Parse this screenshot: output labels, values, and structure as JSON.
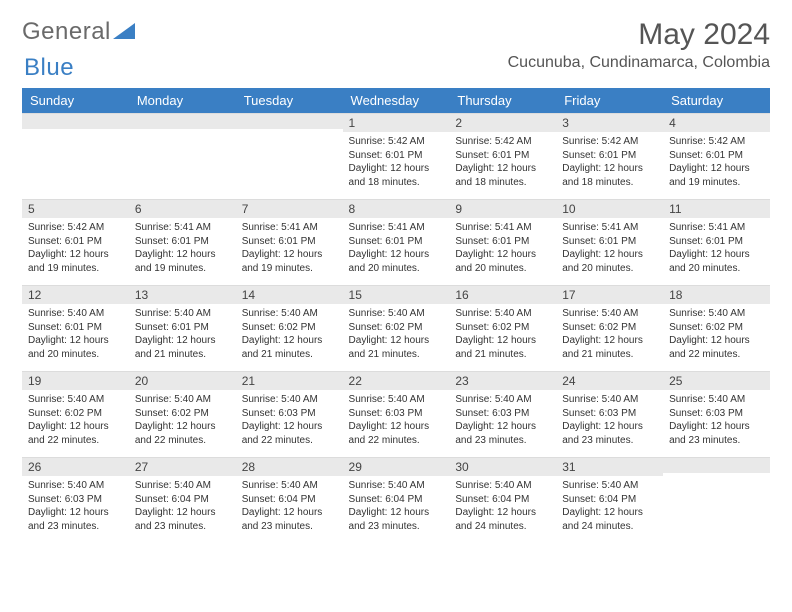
{
  "brand": {
    "part1": "General",
    "part2": "Blue"
  },
  "title": "May 2024",
  "location": "Cucunuba, Cundinamarca, Colombia",
  "colors": {
    "accent": "#3a7fc4",
    "header_text": "#ffffff",
    "daynum_bg": "#e9e9e9",
    "text": "#333333",
    "muted": "#555555"
  },
  "typography": {
    "title_size_pt": 22,
    "location_size_pt": 12,
    "dayhead_size_pt": 10,
    "body_size_pt": 7.5
  },
  "dayHeaders": [
    "Sunday",
    "Monday",
    "Tuesday",
    "Wednesday",
    "Thursday",
    "Friday",
    "Saturday"
  ],
  "weeks": [
    [
      {
        "n": "",
        "lines": [
          "",
          "",
          "",
          ""
        ]
      },
      {
        "n": "",
        "lines": [
          "",
          "",
          "",
          ""
        ]
      },
      {
        "n": "",
        "lines": [
          "",
          "",
          "",
          ""
        ]
      },
      {
        "n": "1",
        "lines": [
          "Sunrise: 5:42 AM",
          "Sunset: 6:01 PM",
          "Daylight: 12 hours",
          "and 18 minutes."
        ]
      },
      {
        "n": "2",
        "lines": [
          "Sunrise: 5:42 AM",
          "Sunset: 6:01 PM",
          "Daylight: 12 hours",
          "and 18 minutes."
        ]
      },
      {
        "n": "3",
        "lines": [
          "Sunrise: 5:42 AM",
          "Sunset: 6:01 PM",
          "Daylight: 12 hours",
          "and 18 minutes."
        ]
      },
      {
        "n": "4",
        "lines": [
          "Sunrise: 5:42 AM",
          "Sunset: 6:01 PM",
          "Daylight: 12 hours",
          "and 19 minutes."
        ]
      }
    ],
    [
      {
        "n": "5",
        "lines": [
          "Sunrise: 5:42 AM",
          "Sunset: 6:01 PM",
          "Daylight: 12 hours",
          "and 19 minutes."
        ]
      },
      {
        "n": "6",
        "lines": [
          "Sunrise: 5:41 AM",
          "Sunset: 6:01 PM",
          "Daylight: 12 hours",
          "and 19 minutes."
        ]
      },
      {
        "n": "7",
        "lines": [
          "Sunrise: 5:41 AM",
          "Sunset: 6:01 PM",
          "Daylight: 12 hours",
          "and 19 minutes."
        ]
      },
      {
        "n": "8",
        "lines": [
          "Sunrise: 5:41 AM",
          "Sunset: 6:01 PM",
          "Daylight: 12 hours",
          "and 20 minutes."
        ]
      },
      {
        "n": "9",
        "lines": [
          "Sunrise: 5:41 AM",
          "Sunset: 6:01 PM",
          "Daylight: 12 hours",
          "and 20 minutes."
        ]
      },
      {
        "n": "10",
        "lines": [
          "Sunrise: 5:41 AM",
          "Sunset: 6:01 PM",
          "Daylight: 12 hours",
          "and 20 minutes."
        ]
      },
      {
        "n": "11",
        "lines": [
          "Sunrise: 5:41 AM",
          "Sunset: 6:01 PM",
          "Daylight: 12 hours",
          "and 20 minutes."
        ]
      }
    ],
    [
      {
        "n": "12",
        "lines": [
          "Sunrise: 5:40 AM",
          "Sunset: 6:01 PM",
          "Daylight: 12 hours",
          "and 20 minutes."
        ]
      },
      {
        "n": "13",
        "lines": [
          "Sunrise: 5:40 AM",
          "Sunset: 6:01 PM",
          "Daylight: 12 hours",
          "and 21 minutes."
        ]
      },
      {
        "n": "14",
        "lines": [
          "Sunrise: 5:40 AM",
          "Sunset: 6:02 PM",
          "Daylight: 12 hours",
          "and 21 minutes."
        ]
      },
      {
        "n": "15",
        "lines": [
          "Sunrise: 5:40 AM",
          "Sunset: 6:02 PM",
          "Daylight: 12 hours",
          "and 21 minutes."
        ]
      },
      {
        "n": "16",
        "lines": [
          "Sunrise: 5:40 AM",
          "Sunset: 6:02 PM",
          "Daylight: 12 hours",
          "and 21 minutes."
        ]
      },
      {
        "n": "17",
        "lines": [
          "Sunrise: 5:40 AM",
          "Sunset: 6:02 PM",
          "Daylight: 12 hours",
          "and 21 minutes."
        ]
      },
      {
        "n": "18",
        "lines": [
          "Sunrise: 5:40 AM",
          "Sunset: 6:02 PM",
          "Daylight: 12 hours",
          "and 22 minutes."
        ]
      }
    ],
    [
      {
        "n": "19",
        "lines": [
          "Sunrise: 5:40 AM",
          "Sunset: 6:02 PM",
          "Daylight: 12 hours",
          "and 22 minutes."
        ]
      },
      {
        "n": "20",
        "lines": [
          "Sunrise: 5:40 AM",
          "Sunset: 6:02 PM",
          "Daylight: 12 hours",
          "and 22 minutes."
        ]
      },
      {
        "n": "21",
        "lines": [
          "Sunrise: 5:40 AM",
          "Sunset: 6:03 PM",
          "Daylight: 12 hours",
          "and 22 minutes."
        ]
      },
      {
        "n": "22",
        "lines": [
          "Sunrise: 5:40 AM",
          "Sunset: 6:03 PM",
          "Daylight: 12 hours",
          "and 22 minutes."
        ]
      },
      {
        "n": "23",
        "lines": [
          "Sunrise: 5:40 AM",
          "Sunset: 6:03 PM",
          "Daylight: 12 hours",
          "and 23 minutes."
        ]
      },
      {
        "n": "24",
        "lines": [
          "Sunrise: 5:40 AM",
          "Sunset: 6:03 PM",
          "Daylight: 12 hours",
          "and 23 minutes."
        ]
      },
      {
        "n": "25",
        "lines": [
          "Sunrise: 5:40 AM",
          "Sunset: 6:03 PM",
          "Daylight: 12 hours",
          "and 23 minutes."
        ]
      }
    ],
    [
      {
        "n": "26",
        "lines": [
          "Sunrise: 5:40 AM",
          "Sunset: 6:03 PM",
          "Daylight: 12 hours",
          "and 23 minutes."
        ]
      },
      {
        "n": "27",
        "lines": [
          "Sunrise: 5:40 AM",
          "Sunset: 6:04 PM",
          "Daylight: 12 hours",
          "and 23 minutes."
        ]
      },
      {
        "n": "28",
        "lines": [
          "Sunrise: 5:40 AM",
          "Sunset: 6:04 PM",
          "Daylight: 12 hours",
          "and 23 minutes."
        ]
      },
      {
        "n": "29",
        "lines": [
          "Sunrise: 5:40 AM",
          "Sunset: 6:04 PM",
          "Daylight: 12 hours",
          "and 23 minutes."
        ]
      },
      {
        "n": "30",
        "lines": [
          "Sunrise: 5:40 AM",
          "Sunset: 6:04 PM",
          "Daylight: 12 hours",
          "and 24 minutes."
        ]
      },
      {
        "n": "31",
        "lines": [
          "Sunrise: 5:40 AM",
          "Sunset: 6:04 PM",
          "Daylight: 12 hours",
          "and 24 minutes."
        ]
      },
      {
        "n": "",
        "lines": [
          "",
          "",
          "",
          ""
        ]
      }
    ]
  ]
}
